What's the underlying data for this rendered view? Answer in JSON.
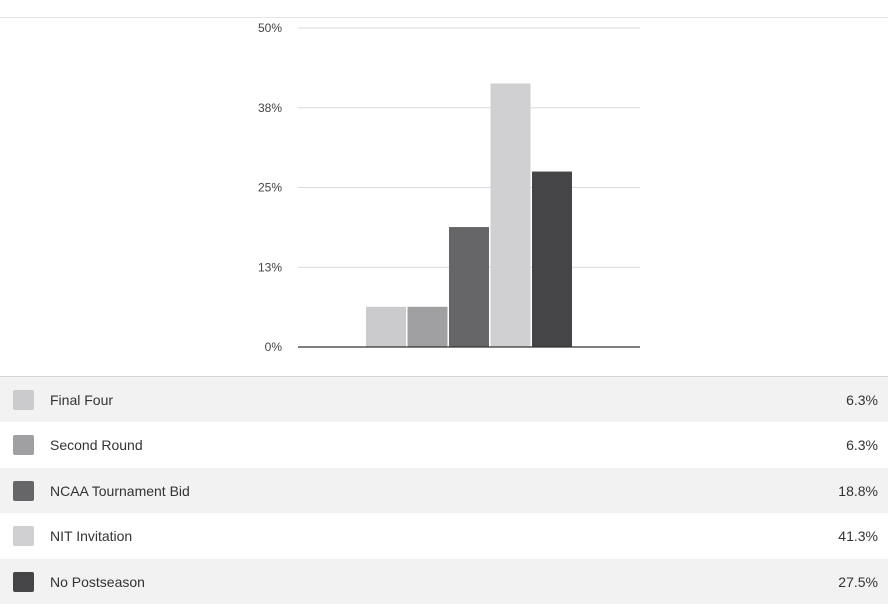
{
  "chart_data": {
    "type": "bar",
    "categories": [
      "Final Four",
      "Second Round",
      "NCAA Tournament Bid",
      "NIT Invitation",
      "No Postseason"
    ],
    "values": [
      6.3,
      6.3,
      18.8,
      41.3,
      27.5
    ],
    "value_labels": [
      "6.3%",
      "6.3%",
      "18.8%",
      "41.3%",
      "27.5%"
    ],
    "colors": [
      "#cbcbcd",
      "#a0a0a2",
      "#666668",
      "#d0d0d2",
      "#454547"
    ],
    "y_ticks": [
      {
        "value": 0,
        "label": "0%"
      },
      {
        "value": 12.5,
        "label": "13%"
      },
      {
        "value": 25,
        "label": "25%"
      },
      {
        "value": 37.5,
        "label": "38%"
      },
      {
        "value": 50,
        "label": "50%"
      }
    ],
    "ylim": [
      0,
      50
    ],
    "grid": true,
    "legend_position": "bottom"
  }
}
